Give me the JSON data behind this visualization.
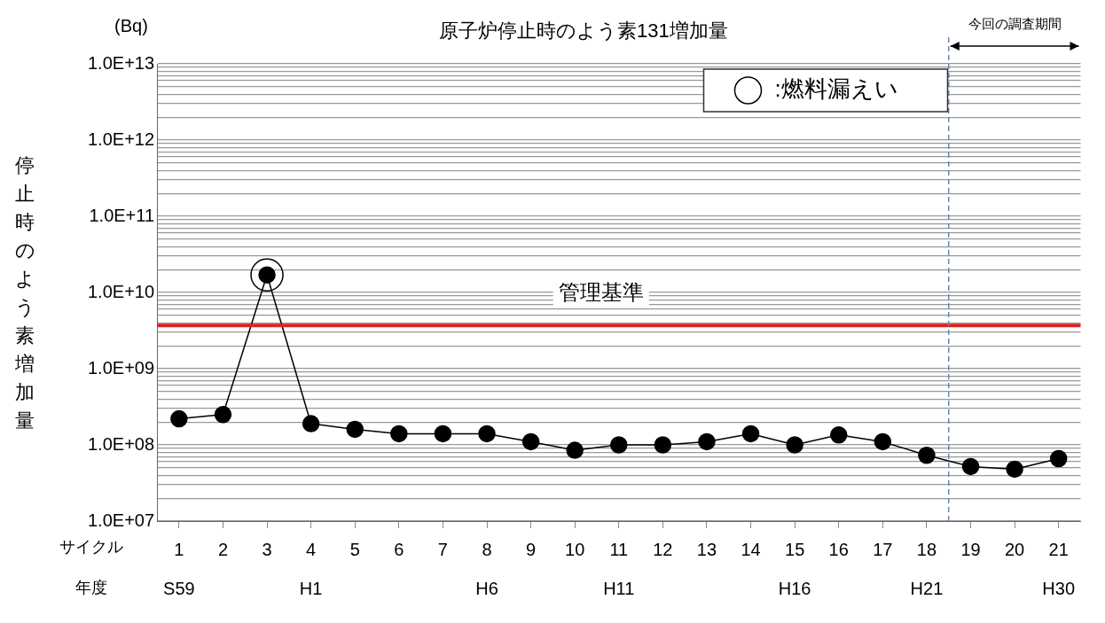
{
  "chart_data": {
    "type": "line",
    "title": "原子炉停止時のよう素131増加量",
    "ylabel": "停止時のよう素増加量",
    "xlabel": "サイクル",
    "x": [
      1,
      2,
      3,
      4,
      5,
      6,
      7,
      8,
      9,
      10,
      11,
      12,
      13,
      14,
      15,
      16,
      17,
      18,
      19,
      20,
      21
    ],
    "series": [
      {
        "color": "#000000",
        "marker": "circle",
        "values": [
          220000000.0,
          250000000.0,
          17000000000.0,
          190000000.0,
          160000000.0,
          140000000.0,
          140000000.0,
          140000000.0,
          110000000.0,
          85000000.0,
          100000000.0,
          100000000.0,
          110000000.0,
          140000000.0,
          100000000.0,
          135000000.0,
          110000000.0,
          73000000.0,
          52000000.0,
          48000000.0,
          66000000.0
        ]
      },
      {
        "type": "scatter",
        "name": ":燃料漏えい",
        "color": "#000000",
        "x": [
          3
        ],
        "values": [
          17000000000.0
        ]
      }
    ],
    "log": "y",
    "grid": "y",
    "legend": "top right",
    "xlim": [
      0.5,
      21.5
    ],
    "xticks": [
      {
        "value": 1,
        "label": "1\nS59"
      },
      2,
      3,
      {
        "value": 4,
        "label": "4\nH1"
      },
      5,
      6,
      7,
      {
        "value": 8,
        "label": "8\nH6"
      },
      9,
      10,
      {
        "value": 11,
        "label": "11\nH11"
      },
      12,
      13,
      14,
      {
        "value": 15,
        "label": "15\nH16"
      },
      16,
      17,
      {
        "value": 18,
        "label": "18\nH21"
      },
      19,
      20,
      {
        "value": 21,
        "label": "21\nH30"
      }
    ],
    "ylim": [
      10000000.0,
      10000000000000.0
    ],
    "yticks": [
      {
        "value": 10000000.0,
        "label": "1.0E+07"
      },
      {
        "value": 20000000.0,
        "label": null
      },
      {
        "value": 30000000.0,
        "label": null
      },
      {
        "value": 40000000.0,
        "label": null
      },
      {
        "value": 50000000.0,
        "label": null
      },
      {
        "value": 60000000.0,
        "label": null
      },
      {
        "value": 70000000.0,
        "label": null
      },
      {
        "value": 80000000.0,
        "label": null
      },
      {
        "value": 90000000.0,
        "label": null
      },
      {
        "value": 100000000.0,
        "label": "1.0E+08"
      },
      {
        "value": 200000000.0,
        "label": null
      },
      {
        "value": 300000000.0,
        "label": null
      },
      {
        "value": 400000000.0,
        "label": null
      },
      {
        "value": 500000000.0,
        "label": null
      },
      {
        "value": 600000000.0,
        "label": null
      },
      {
        "value": 700000000.0,
        "label": null
      },
      {
        "value": 800000000.0,
        "label": null
      },
      {
        "value": 900000000.0,
        "label": null
      },
      {
        "value": 1000000000.0,
        "label": "1.0E+09"
      },
      {
        "value": 2000000000.0,
        "label": null
      },
      {
        "value": 3000000000.0,
        "label": null
      },
      {
        "value": 4000000000.0,
        "label": null
      },
      {
        "value": 5000000000.0,
        "label": null
      },
      {
        "value": 6000000000.0,
        "label": null
      },
      {
        "value": 7000000000.0,
        "label": null
      },
      {
        "value": 8000000000.0,
        "label": null
      },
      {
        "value": 9000000000.0,
        "label": null
      },
      {
        "value": 10000000000.0,
        "label": "1.0E+10"
      },
      {
        "value": 20000000000.0,
        "label": null
      },
      {
        "value": 30000000000.0,
        "label": null
      },
      {
        "value": 40000000000.0,
        "label": null
      },
      {
        "value": 50000000000.0,
        "label": null
      },
      {
        "value": 60000000000.0,
        "label": null
      },
      {
        "value": 70000000000.0,
        "label": null
      },
      {
        "value": 80000000000.0,
        "label": null
      },
      {
        "value": 90000000000.0,
        "label": null
      },
      {
        "value": 100000000000.0,
        "label": "1.0E+11"
      },
      {
        "value": 200000000000.0,
        "label": null
      },
      {
        "value": 300000000000.0,
        "label": null
      },
      {
        "value": 400000000000.0,
        "label": null
      },
      {
        "value": 500000000000.0,
        "label": null
      },
      {
        "value": 600000000000.0,
        "label": null
      },
      {
        "value": 700000000000.0,
        "label": null
      },
      {
        "value": 800000000000.0,
        "label": null
      },
      {
        "value": 900000000000.0,
        "label": null
      },
      {
        "value": 1000000000000.0,
        "label": "1.0E+12"
      },
      {
        "value": 2000000000000.0,
        "label": null
      },
      {
        "value": 3000000000000.0,
        "label": null
      },
      {
        "value": 4000000000000.0,
        "label": null
      },
      {
        "value": 5000000000000.0,
        "label": null
      },
      {
        "value": 6000000000000.0,
        "label": null
      },
      {
        "value": 7000000000000.0,
        "label": null
      },
      {
        "value": 8000000000000.0,
        "label": null
      },
      {
        "value": 9000000000000.0,
        "label": null
      },
      {
        "value": 10000000000000.0,
        "label": "1.0E+13"
      }
    ],
    "ref_lines": [
      {
        "axis": "y",
        "value": 3700000000.0,
        "label": "管理基準",
        "color": "#e02020"
      },
      {
        "axis": "x",
        "value": 18.5,
        "label": "今回の調査期間",
        "color": "#6688aa",
        "line_style": "dashed"
      }
    ],
    "annotations": [
      "(Bq)",
      "年度"
    ]
  }
}
